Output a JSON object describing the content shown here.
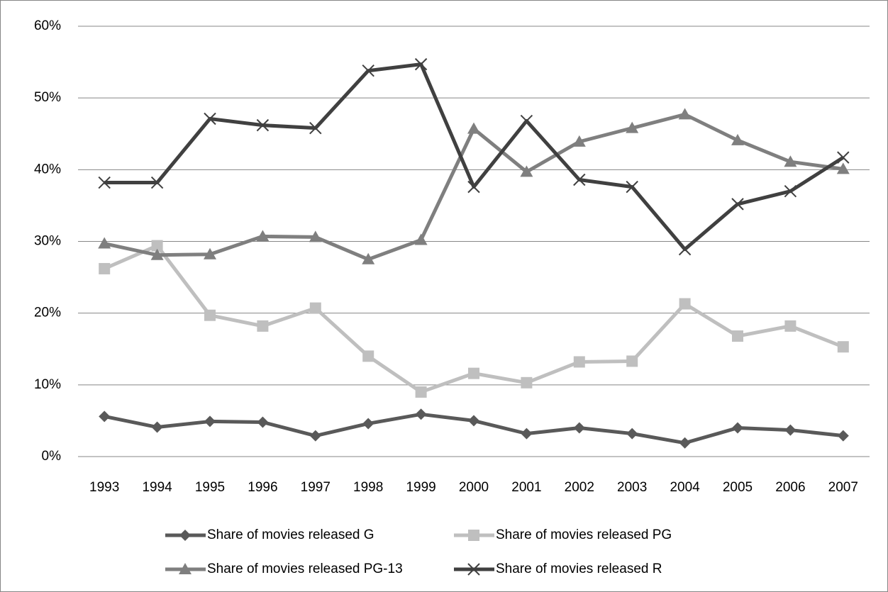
{
  "chart_data": {
    "type": "line",
    "categories": [
      "1993",
      "1994",
      "1995",
      "1996",
      "1997",
      "1998",
      "1999",
      "2000",
      "2001",
      "2002",
      "2003",
      "2004",
      "2005",
      "2006",
      "2007"
    ],
    "series": [
      {
        "name": "Share of movies released G",
        "color": "#595959",
        "marker": "diamond",
        "values": [
          5.6,
          4.1,
          4.9,
          4.8,
          2.9,
          4.6,
          5.9,
          5.0,
          3.2,
          4.0,
          3.2,
          1.9,
          4.0,
          3.7,
          2.9
        ]
      },
      {
        "name": "Share of movies released PG",
        "color": "#bfbfbf",
        "marker": "square",
        "values": [
          26.2,
          29.4,
          19.7,
          18.2,
          20.7,
          14.0,
          9.0,
          11.6,
          10.3,
          13.2,
          13.3,
          21.3,
          16.8,
          18.2,
          15.3
        ]
      },
      {
        "name": "Share of movies released PG-13",
        "color": "#7f7f7f",
        "marker": "triangle",
        "values": [
          29.7,
          28.1,
          28.2,
          30.7,
          30.6,
          27.5,
          30.2,
          45.7,
          39.7,
          43.9,
          45.8,
          47.7,
          44.1,
          41.1,
          40.1
        ]
      },
      {
        "name": "Share of movies released R",
        "color": "#404040",
        "marker": "x",
        "values": [
          38.2,
          38.2,
          47.1,
          46.2,
          45.8,
          53.8,
          54.7,
          37.6,
          46.8,
          38.6,
          37.6,
          28.9,
          35.2,
          37.0,
          41.7
        ]
      }
    ],
    "ylim": [
      0,
      60
    ],
    "yticks": [
      {
        "value": 0,
        "label": "0%"
      },
      {
        "value": 10,
        "label": "10%"
      },
      {
        "value": 20,
        "label": "20%"
      },
      {
        "value": 30,
        "label": "30%"
      },
      {
        "value": 40,
        "label": "40%"
      },
      {
        "value": 50,
        "label": "50%"
      },
      {
        "value": 60,
        "label": "60%"
      }
    ],
    "grid": true,
    "legend": "bottom"
  }
}
